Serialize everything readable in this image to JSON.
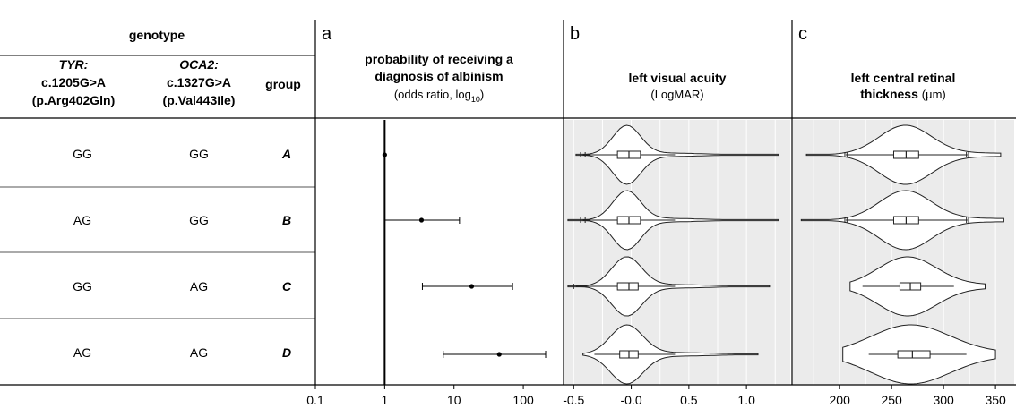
{
  "table": {
    "genotype_header": "genotype",
    "tyr_gene": "TYR:",
    "tyr_variant": "c.1205G>A",
    "tyr_protein": "(p.Arg402Gln)",
    "oca2_gene": "OCA2:",
    "oca2_variant": "c.1327G>A",
    "oca2_protein": "(p.Val443Ile)",
    "group_header": "group",
    "rows": [
      {
        "tyr": "GG",
        "oca2": "GG",
        "group": "A"
      },
      {
        "tyr": "AG",
        "oca2": "GG",
        "group": "B"
      },
      {
        "tyr": "GG",
        "oca2": "AG",
        "group": "C"
      },
      {
        "tyr": "AG",
        "oca2": "AG",
        "group": "D"
      }
    ]
  },
  "panels": {
    "a": {
      "letter": "a",
      "title1": "probability of receiving a",
      "title2": "diagnosis of albinism",
      "subtitle": "(odds ratio, log",
      "subtitle_sub": "10",
      "subtitle_end": ")"
    },
    "b": {
      "letter": "b",
      "title1": "left visual acuity",
      "subtitle": "(LogMAR)"
    },
    "c": {
      "letter": "c",
      "title1": "left central retinal",
      "title2": "thickness",
      "title2_unit": "(µm)"
    }
  },
  "chart_data": [
    {
      "type": "forest",
      "panel": "a",
      "scale": "log10",
      "xlim": [
        0.1,
        300
      ],
      "ticks": [
        0.1,
        1,
        10,
        100
      ],
      "tick_labels": [
        "0.1",
        "1",
        "10",
        "100"
      ],
      "reference_line": 1,
      "categories": [
        "A",
        "B",
        "C",
        "D"
      ],
      "estimates": [
        1,
        3.4,
        18,
        45
      ],
      "ci_low": [
        null,
        1,
        3.5,
        7
      ],
      "ci_high": [
        null,
        12,
        70,
        210
      ]
    },
    {
      "type": "violin",
      "panel": "b",
      "xlim": [
        -0.58,
        1.38
      ],
      "ticks": [
        -0.5,
        -0.0,
        0.5,
        1.0
      ],
      "tick_labels": [
        "-0.5",
        "-0.0",
        "0.5",
        "1.0"
      ],
      "grid": true,
      "categories": [
        "A",
        "B",
        "C",
        "D"
      ],
      "violins": [
        {
          "min": -0.48,
          "max": 1.28,
          "q1": -0.12,
          "median": -0.02,
          "q3": 0.08,
          "w_low": -0.42,
          "w_high": 0.38,
          "mode": -0.04,
          "spread": 0.12,
          "outliers": [
            -0.44,
            -0.4
          ]
        },
        {
          "min": -0.55,
          "max": 1.28,
          "q1": -0.12,
          "median": -0.02,
          "q3": 0.08,
          "w_low": -0.42,
          "w_high": 0.38,
          "mode": -0.04,
          "spread": 0.12,
          "outliers": [
            -0.44,
            -0.4
          ]
        },
        {
          "min": -0.55,
          "max": 1.2,
          "q1": -0.12,
          "median": -0.02,
          "q3": 0.06,
          "w_low": -0.48,
          "w_high": 0.38,
          "mode": -0.04,
          "spread": 0.13,
          "outliers": [
            -0.5
          ]
        },
        {
          "min": -0.42,
          "max": 1.1,
          "q1": -0.1,
          "median": -0.02,
          "q3": 0.06,
          "w_low": -0.32,
          "w_high": 0.38,
          "mode": -0.04,
          "spread": 0.14,
          "outliers": []
        }
      ]
    },
    {
      "type": "violin",
      "panel": "c",
      "xlim": [
        155,
        368
      ],
      "ticks": [
        200,
        250,
        300,
        350
      ],
      "tick_labels": [
        "200",
        "250",
        "300",
        "350"
      ],
      "grid": true,
      "categories": [
        "A",
        "B",
        "C",
        "D"
      ],
      "violins": [
        {
          "min": 168,
          "max": 355,
          "q1": 252,
          "median": 264,
          "q3": 276,
          "w_low": 206,
          "w_high": 323,
          "mode": 263,
          "spread": 25,
          "outliers": [
            205,
            207,
            322,
            324
          ]
        },
        {
          "min": 163,
          "max": 358,
          "q1": 252,
          "median": 264,
          "q3": 276,
          "w_low": 206,
          "w_high": 323,
          "mode": 263,
          "spread": 25,
          "outliers": [
            205,
            207,
            322,
            324
          ]
        },
        {
          "min": 210,
          "max": 340,
          "q1": 258,
          "median": 268,
          "q3": 278,
          "w_low": 222,
          "w_high": 310,
          "mode": 265,
          "spread": 28,
          "outliers": []
        },
        {
          "min": 203,
          "max": 350,
          "q1": 256,
          "median": 270,
          "q3": 287,
          "w_low": 228,
          "w_high": 322,
          "mode": 268,
          "spread": 38,
          "outliers": []
        }
      ]
    }
  ]
}
